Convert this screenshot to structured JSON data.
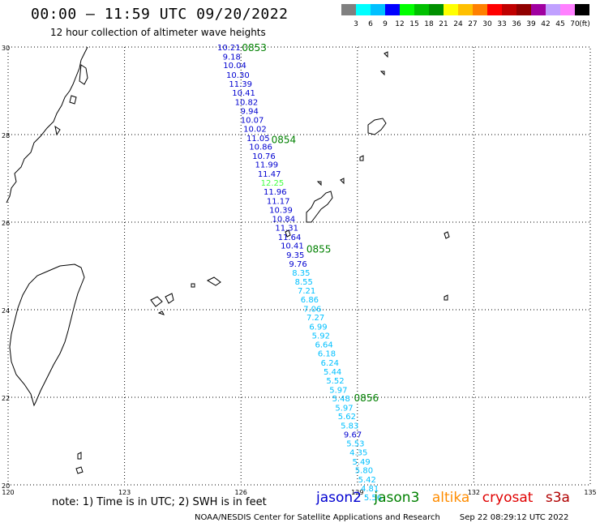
{
  "header": {
    "title": "00:00 – 11:59 UTC 09/20/2022",
    "subtitle": "12 hour collection of altimeter wave heights"
  },
  "colorbar": {
    "ticks": [
      "3",
      "6",
      "9",
      "12",
      "15",
      "18",
      "21",
      "24",
      "27",
      "30",
      "33",
      "36",
      "39",
      "42",
      "45",
      "70"
    ],
    "unit": "(ft)",
    "colors": [
      "#808080",
      "#00ffff",
      "#00c0ff",
      "#0000ff",
      "#00ff00",
      "#00c000",
      "#009000",
      "#ffff00",
      "#ffc000",
      "#ff8000",
      "#ff0000",
      "#c00000",
      "#900000",
      "#a000a0",
      "#c0a0ff",
      "#ff80ff",
      "#000000"
    ]
  },
  "axes": {
    "lat_labels": [
      "30",
      "28",
      "26",
      "24",
      "22",
      "20"
    ],
    "lon_labels": [
      "120",
      "123",
      "126",
      "129",
      "132",
      "135"
    ]
  },
  "track": {
    "times": [
      {
        "label": "0853",
        "lat": 30.0
      },
      {
        "label": "0854",
        "lat": 27.9
      },
      {
        "label": "0855",
        "lat": 25.4
      },
      {
        "label": "0856",
        "lat": 22.0
      }
    ],
    "points": [
      {
        "lon": 125.69,
        "lat": 30.0,
        "v": "10.21",
        "c": "#0000d0"
      },
      {
        "lon": 125.76,
        "lat": 29.79,
        "v": "9.18",
        "c": "#0000d0"
      },
      {
        "lon": 125.84,
        "lat": 29.59,
        "v": "10.04",
        "c": "#0000d0"
      },
      {
        "lon": 125.92,
        "lat": 29.37,
        "v": "10.30",
        "c": "#0000d0"
      },
      {
        "lon": 125.99,
        "lat": 29.17,
        "v": "11.39",
        "c": "#0000d0"
      },
      {
        "lon": 126.07,
        "lat": 28.96,
        "v": "10.41",
        "c": "#0000d0"
      },
      {
        "lon": 126.14,
        "lat": 28.75,
        "v": "10.82",
        "c": "#0000d0"
      },
      {
        "lon": 126.22,
        "lat": 28.55,
        "v": "9.94",
        "c": "#0000d0"
      },
      {
        "lon": 126.29,
        "lat": 28.34,
        "v": "10.07",
        "c": "#0000d0"
      },
      {
        "lon": 126.36,
        "lat": 28.14,
        "v": "10.02",
        "c": "#0000d0"
      },
      {
        "lon": 126.44,
        "lat": 27.93,
        "v": "11.05",
        "c": "#0000d0"
      },
      {
        "lon": 126.51,
        "lat": 27.73,
        "v": "10.86",
        "c": "#0000d0"
      },
      {
        "lon": 126.59,
        "lat": 27.52,
        "v": "10.76",
        "c": "#0000d0"
      },
      {
        "lon": 126.66,
        "lat": 27.32,
        "v": "11.99",
        "c": "#0000d0"
      },
      {
        "lon": 126.73,
        "lat": 27.11,
        "v": "11.47",
        "c": "#0000d0"
      },
      {
        "lon": 126.81,
        "lat": 26.91,
        "v": "12.25",
        "c": "#40ff40"
      },
      {
        "lon": 126.88,
        "lat": 26.7,
        "v": "11.96",
        "c": "#0000d0"
      },
      {
        "lon": 126.96,
        "lat": 26.49,
        "v": "11.17",
        "c": "#0000d0"
      },
      {
        "lon": 127.03,
        "lat": 26.29,
        "v": "10.39",
        "c": "#0000d0"
      },
      {
        "lon": 127.1,
        "lat": 26.08,
        "v": "10.84",
        "c": "#0000d0"
      },
      {
        "lon": 127.18,
        "lat": 25.88,
        "v": "11.31",
        "c": "#0000d0"
      },
      {
        "lon": 127.25,
        "lat": 25.67,
        "v": "11.64",
        "c": "#0000d0"
      },
      {
        "lon": 127.32,
        "lat": 25.47,
        "v": "10.41",
        "c": "#0000d0"
      },
      {
        "lon": 127.4,
        "lat": 25.26,
        "v": "9.35",
        "c": "#0000d0"
      },
      {
        "lon": 127.47,
        "lat": 25.06,
        "v": "9.76",
        "c": "#0000d0"
      },
      {
        "lon": 127.55,
        "lat": 24.85,
        "v": "8.35",
        "c": "#00c0ff"
      },
      {
        "lon": 127.62,
        "lat": 24.65,
        "v": "8.55",
        "c": "#00c0ff"
      },
      {
        "lon": 127.69,
        "lat": 24.44,
        "v": "7.21",
        "c": "#00c0ff"
      },
      {
        "lon": 127.77,
        "lat": 24.24,
        "v": "6.86",
        "c": "#00c0ff"
      },
      {
        "lon": 127.84,
        "lat": 24.03,
        "v": "7.06",
        "c": "#00c0ff"
      },
      {
        "lon": 127.92,
        "lat": 23.83,
        "v": "7.27",
        "c": "#00c0ff"
      },
      {
        "lon": 127.99,
        "lat": 23.62,
        "v": "6.99",
        "c": "#00c0ff"
      },
      {
        "lon": 128.06,
        "lat": 23.42,
        "v": "5.92",
        "c": "#00c0ff"
      },
      {
        "lon": 128.14,
        "lat": 23.21,
        "v": "6.64",
        "c": "#00c0ff"
      },
      {
        "lon": 128.21,
        "lat": 23.01,
        "v": "6.18",
        "c": "#00c0ff"
      },
      {
        "lon": 128.29,
        "lat": 22.8,
        "v": "6.24",
        "c": "#00c0ff"
      },
      {
        "lon": 128.36,
        "lat": 22.59,
        "v": "5.44",
        "c": "#00c0ff"
      },
      {
        "lon": 128.43,
        "lat": 22.39,
        "v": "5.52",
        "c": "#00c0ff"
      },
      {
        "lon": 128.51,
        "lat": 22.18,
        "v": "5.97",
        "c": "#00c0ff"
      },
      {
        "lon": 128.58,
        "lat": 21.98,
        "v": "5.48",
        "c": "#00c0ff"
      },
      {
        "lon": 128.66,
        "lat": 21.77,
        "v": "5.97",
        "c": "#00c0ff"
      },
      {
        "lon": 128.73,
        "lat": 21.57,
        "v": "5.62",
        "c": "#00c0ff"
      },
      {
        "lon": 128.8,
        "lat": 21.36,
        "v": "5.83",
        "c": "#00c0ff"
      },
      {
        "lon": 128.88,
        "lat": 21.16,
        "v": "9.67",
        "c": "#0000d0"
      },
      {
        "lon": 128.95,
        "lat": 20.95,
        "v": "5.53",
        "c": "#00c0ff"
      },
      {
        "lon": 129.03,
        "lat": 20.75,
        "v": "4.35",
        "c": "#00c0ff"
      },
      {
        "lon": 129.1,
        "lat": 20.54,
        "v": "5.49",
        "c": "#00c0ff"
      },
      {
        "lon": 129.17,
        "lat": 20.34,
        "v": "5.80",
        "c": "#00c0ff"
      },
      {
        "lon": 129.25,
        "lat": 20.13,
        "v": "5.42",
        "c": "#00c0ff"
      },
      {
        "lon": 129.32,
        "lat": 19.93,
        "v": "4.81",
        "c": "#00c0ff"
      },
      {
        "lon": 129.4,
        "lat": 19.72,
        "v": "5.56",
        "c": "#00c0ff"
      }
    ]
  },
  "footer": {
    "note": "note: 1) Time is in UTC; 2) SWH is in feet",
    "legend": [
      {
        "name": "jason2",
        "color": "#0000d0"
      },
      {
        "name": "jason3",
        "color": "#008000"
      },
      {
        "name": "altika",
        "color": "#ff8c00"
      },
      {
        "name": "cryosat",
        "color": "#e00000"
      },
      {
        "name": "s3a",
        "color": "#b00000"
      }
    ],
    "credit": "NOAA/NESDIS Center for Satellite Applications and Research",
    "timestamp": "Sep 22 08:29:12 UTC 2022"
  }
}
